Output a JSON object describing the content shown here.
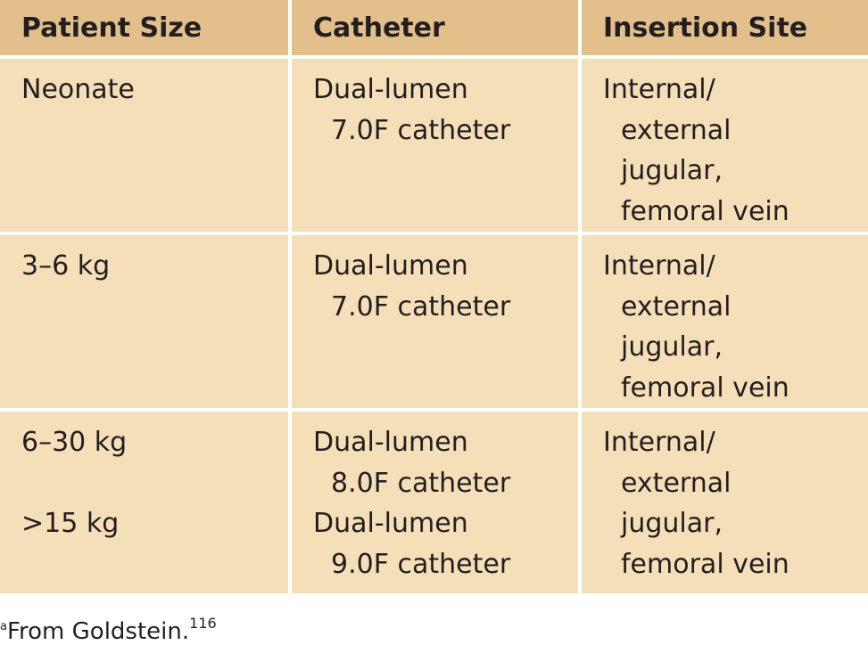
{
  "headers": [
    "Patient Size",
    "Catheter",
    "Insertion Site"
  ],
  "rows": [
    {
      "size": [
        "Neonate"
      ],
      "catheter": [
        "Dual-lumen",
        "7.0F catheter"
      ],
      "site": [
        "Internal/",
        "external",
        "jugular,",
        "femoral vein"
      ]
    },
    {
      "size": [
        "3–6 kg"
      ],
      "catheter": [
        "Dual-lumen",
        "7.0F catheter"
      ],
      "site": [
        "Internal/",
        "external",
        "jugular,",
        "femoral vein"
      ]
    },
    {
      "size": [
        "6–30 kg",
        "",
        ">15 kg"
      ],
      "catheter": [
        "Dual-lumen",
        "8.0F catheter",
        "Dual-lumen",
        "9.0F catheter"
      ],
      "site": [
        "Internal/",
        "external",
        "jugular,",
        "femoral vein"
      ]
    }
  ],
  "footnote": {
    "marker": "a",
    "text": "From Goldstein.",
    "ref": "116"
  },
  "colors": {
    "header": "#e3bf8c",
    "body": "#f5dfb8"
  }
}
